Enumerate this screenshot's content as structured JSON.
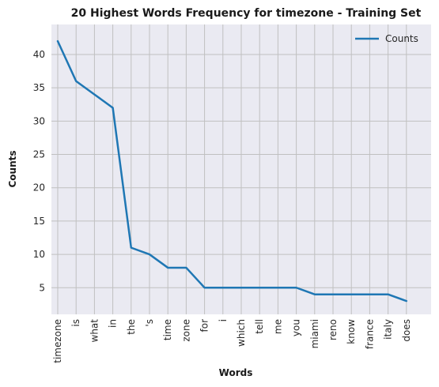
{
  "chart_data": {
    "type": "line",
    "title": "20 Highest Words Frequency for timezone - Training Set",
    "xlabel": "Words",
    "ylabel": "Counts",
    "categories": [
      "timezone",
      "is",
      "what",
      "in",
      "the",
      "'s",
      "time",
      "zone",
      "for",
      "i",
      "which",
      "tell",
      "me",
      "you",
      "miami",
      "reno",
      "know",
      "france",
      "italy",
      "does"
    ],
    "series": [
      {
        "name": "Counts",
        "values": [
          42,
          36,
          34,
          32,
          11,
          10,
          8,
          8,
          5,
          5,
          5,
          5,
          5,
          5,
          4,
          4,
          4,
          4,
          4,
          3
        ],
        "color": "#1f77b4"
      }
    ],
    "ylim": [
      1,
      44.5
    ],
    "yticks": [
      5,
      10,
      15,
      20,
      25,
      30,
      35,
      40
    ],
    "grid": true,
    "legend_position": "top-right",
    "background_color": "#eaeaf2",
    "grid_color": "#c0c0c0"
  }
}
